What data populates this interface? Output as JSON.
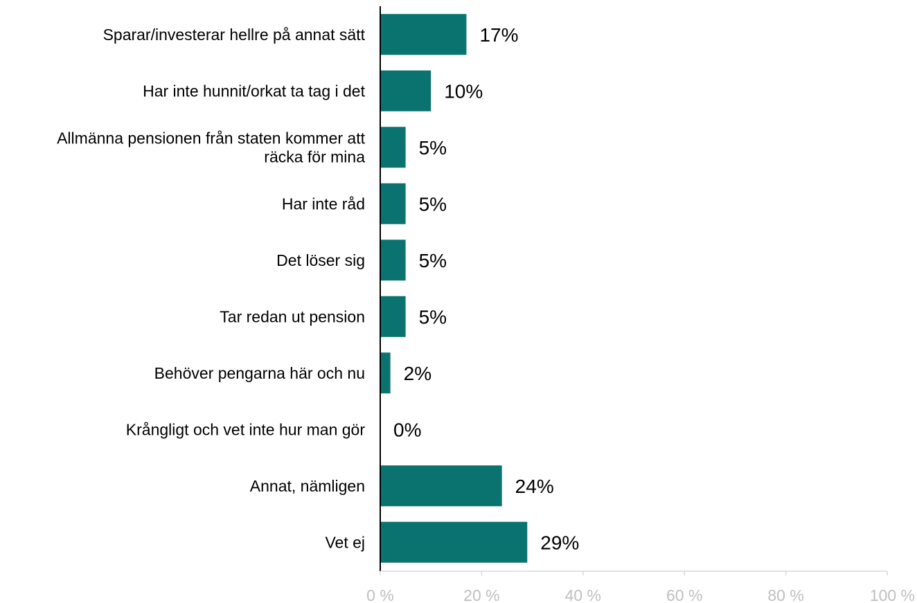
{
  "chart_data": {
    "type": "bar",
    "orientation": "horizontal",
    "categories": [
      [
        "Sparar/investerar hellre på annat sätt"
      ],
      [
        "Har inte hunnit/orkat ta tag i det"
      ],
      [
        "Allmänna pensionen från staten kommer att",
        "räcka för mina"
      ],
      [
        "Har inte råd"
      ],
      [
        "Det löser sig"
      ],
      [
        "Tar redan ut pension"
      ],
      [
        "Behöver pengarna här och nu"
      ],
      [
        "Krångligt och vet inte hur man gör"
      ],
      [
        "Annat, nämligen"
      ],
      [
        "Vet ej"
      ]
    ],
    "values": [
      17,
      10,
      5,
      5,
      5,
      5,
      2,
      0,
      24,
      29
    ],
    "data_labels": [
      "17%",
      "10%",
      "5%",
      "5%",
      "5%",
      "5%",
      "2%",
      "0%",
      "24%",
      "29%"
    ],
    "xlim": [
      0,
      100
    ],
    "x_ticks": [
      0,
      20,
      40,
      60,
      80,
      100
    ],
    "x_tick_labels": [
      "0 %",
      "20 %",
      "40 %",
      "60 %",
      "80 %",
      "100 %"
    ],
    "grid": false,
    "bar_color": "#0a7370",
    "axis_color": "#000000",
    "tick_label_color": "#bfbfbf"
  }
}
